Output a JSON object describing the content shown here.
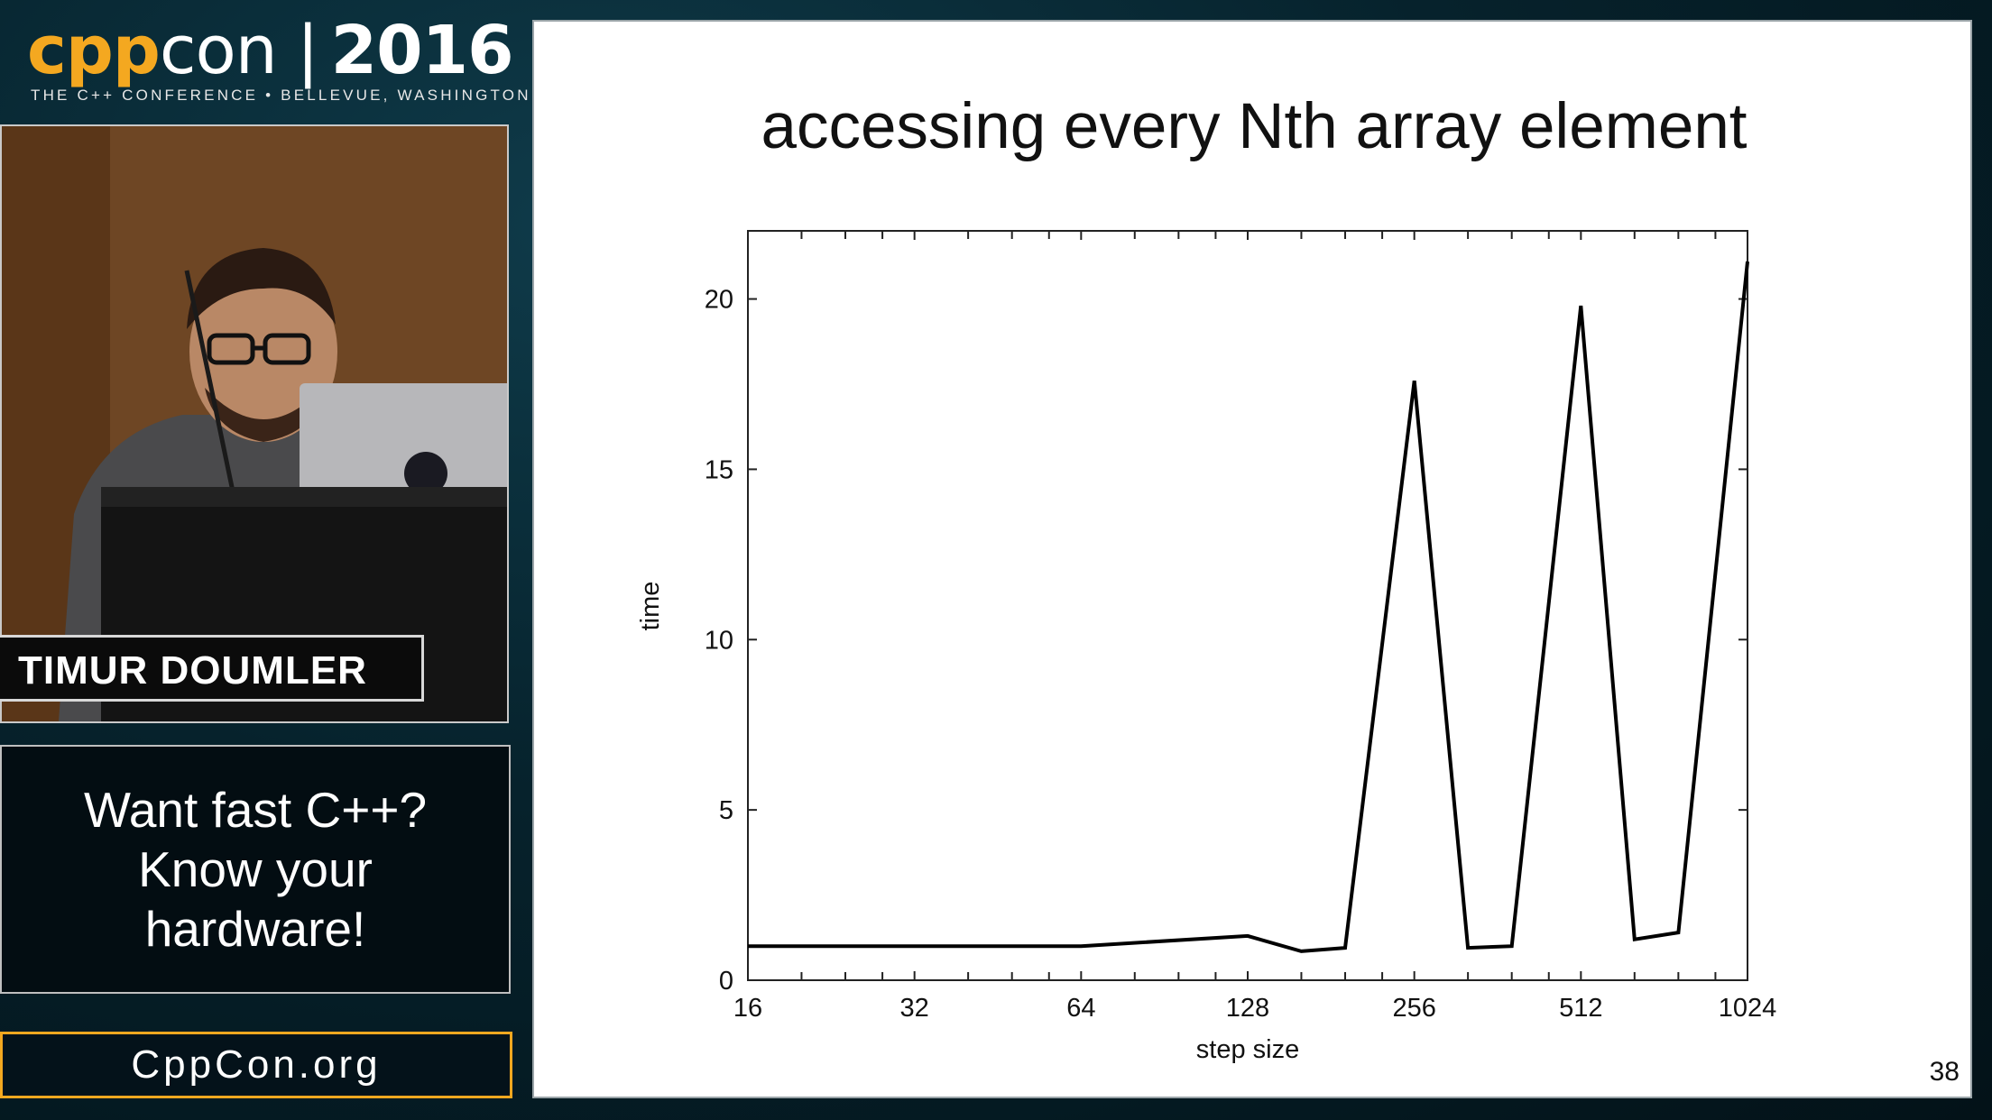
{
  "branding": {
    "cpp": "cpp",
    "con": "con",
    "separator": "|",
    "year": "2016",
    "tagline": "THE C++ CONFERENCE • BELLEVUE, WASHINGTON",
    "accent_color": "#f4a820"
  },
  "speaker": {
    "name": "TIMUR DOUMLER"
  },
  "talk": {
    "title_lines": [
      "Want fast C++?",
      "Know your",
      "hardware!"
    ]
  },
  "site": {
    "label": "CppCon.org"
  },
  "slide": {
    "title": "accessing every Nth array element",
    "number": "38"
  },
  "chart_data": {
    "type": "line",
    "title": "accessing every Nth array element",
    "xlabel": "step size",
    "ylabel": "time",
    "x_scale": "log2",
    "xlim": [
      16,
      1024
    ],
    "ylim": [
      0,
      22
    ],
    "x_ticks": [
      16,
      32,
      64,
      128,
      256,
      512,
      1024
    ],
    "y_ticks": [
      0,
      5,
      10,
      15,
      20
    ],
    "grid": false,
    "legend": "none",
    "series": [
      {
        "x": [
          16,
          32,
          64,
          128,
          160,
          192,
          256,
          320,
          384,
          512,
          640,
          768,
          1024
        ],
        "y": [
          1.0,
          1.0,
          1.0,
          1.3,
          0.85,
          0.95,
          17.6,
          0.95,
          1.0,
          19.8,
          1.2,
          1.4,
          21.1
        ],
        "color": "#000000"
      }
    ]
  }
}
